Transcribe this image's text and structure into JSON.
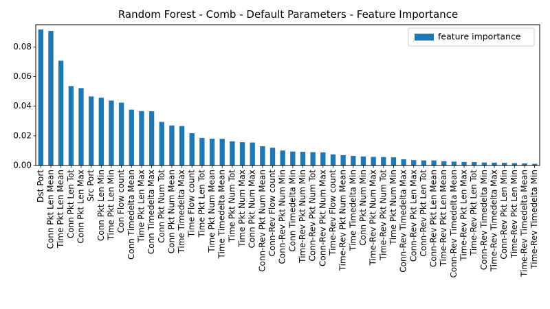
{
  "chart_data": {
    "type": "bar",
    "title": "Random Forest - Comb - Default Parameters - Feature Importance",
    "xlabel": "",
    "ylabel": "",
    "ylim": [
      0,
      0.095
    ],
    "yticks": [
      0.0,
      0.02,
      0.04,
      0.06,
      0.08
    ],
    "ytick_labels": [
      "0.00",
      "0.02",
      "0.04",
      "0.06",
      "0.08"
    ],
    "grid": false,
    "legend_position": "top-right",
    "categories": [
      "Dst Port",
      "Conn Pkt Len Mean",
      "Time Pkt Len Mean",
      "Conn Pkt Len Tot",
      "Conn Pkt Len Max",
      "Src Port",
      "Conn Pkt Len Min",
      "Time Pkt Len Min",
      "Con Flow count",
      "Conn Timedelta Mean",
      "Time Pkt Len Max",
      "Conn Timedelta Max",
      "Conn Pkt Num Tot",
      "Conn Pkt Num Mean",
      "Time Timedelta Max",
      "Time Flow count",
      "Time Pkt Len Tot",
      "Time Pkt Num Mean",
      "Time Timedelta Mean",
      "Time Pkt Num Tot",
      "Time Pkt Num Max",
      "Conn Pkt Num Max",
      "Conn-Rev Pkt Num Mean",
      "Conn-Rev Flow count",
      "Conn-Rev Pkt Num Min",
      "Conn Timedelta Min",
      "Time-Rev Pkt Num Min",
      "Conn-Rev Pkt Num Tot",
      "Conn-Rev Pkt Num Max",
      "Time-Rev Flow count",
      "Time-Rev Pkt Num Mean",
      "Time Timedelta Min",
      "Conn Pkt Num Min",
      "Time-Rev Pkt Num Max",
      "Time-Rev Pkt Num Tot",
      "Time Pkt Num Min",
      "Conn-Rev Timedelta Max",
      "Conn-Rev Pkt Len Max",
      "Conn-Rev Pkt Len Tot",
      "Conn-Rev Pkt Len Mean",
      "Time-Rev Pkt Len Mean",
      "Conn-Rev Timedelta Mean",
      "Time-Rev Pkt Len Max",
      "Time-Rev Pkt Len Tot",
      "Conn-Rev Timedelta Min",
      "Time-Rev Timedelta Max",
      "Conn-Rev Pkt Len Min",
      "Time-Rev Pkt Len Min",
      "Time-Rev Timedelta Mean",
      "Time-Rev Timedelta Min"
    ],
    "series": [
      {
        "name": "feature importance",
        "color": "#1f77b4",
        "values": [
          0.0918,
          0.0908,
          0.0707,
          0.0536,
          0.0522,
          0.0466,
          0.0457,
          0.0438,
          0.0424,
          0.0377,
          0.0367,
          0.0366,
          0.0294,
          0.027,
          0.0266,
          0.0218,
          0.0186,
          0.0181,
          0.018,
          0.0163,
          0.0157,
          0.0155,
          0.013,
          0.012,
          0.0101,
          0.0094,
          0.0092,
          0.009,
          0.0088,
          0.0075,
          0.007,
          0.0065,
          0.0061,
          0.0058,
          0.0057,
          0.0055,
          0.0042,
          0.0036,
          0.0034,
          0.0034,
          0.0029,
          0.0026,
          0.0024,
          0.0023,
          0.002,
          0.0019,
          0.0018,
          0.0016,
          0.0014,
          0.0011
        ]
      }
    ]
  }
}
